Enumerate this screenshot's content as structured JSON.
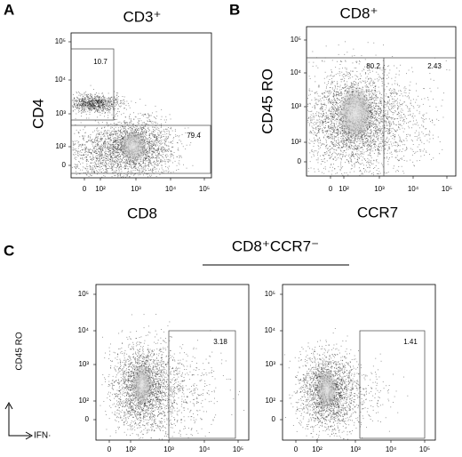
{
  "panels": [
    {
      "label": "A",
      "title": "CD3⁺",
      "y_label": "CD4",
      "x_label": "CD8",
      "y_ticks": [
        "10⁵",
        "10⁴",
        "10³",
        "10²",
        "0"
      ],
      "x_ticks": [
        "0",
        "10²",
        "10³",
        "10⁴",
        "10⁵"
      ],
      "gates": [
        "10.7",
        "79.4"
      ]
    },
    {
      "label": "B",
      "title": "CD8⁺",
      "y_label": "CD45 RO",
      "x_label": "CCR7",
      "y_ticks": [
        "10⁵",
        "10⁴",
        "10³",
        "10²",
        "0"
      ],
      "x_ticks": [
        "0",
        "10²",
        "10³",
        "10⁴",
        "10⁵"
      ],
      "gates": [
        "80.2",
        "2.43"
      ]
    },
    {
      "label": "C",
      "title": "CD8⁺CCR7⁻",
      "y_label": "CD45 RO",
      "x_label": "IFN·",
      "plots": [
        {
          "y_ticks": [
            "10⁵",
            "10⁴",
            "10³",
            "10²",
            "0"
          ],
          "x_ticks": [
            "0",
            "10²",
            "10³",
            "10⁴",
            "10⁵"
          ],
          "gates": [
            "3.18"
          ]
        },
        {
          "y_ticks": [
            "10⁵",
            "10⁴",
            "10³",
            "10²",
            "0"
          ],
          "x_ticks": [
            "0",
            "10²",
            "10³",
            "10⁴",
            "10⁵"
          ],
          "gates": [
            "1.41"
          ]
        }
      ]
    }
  ]
}
